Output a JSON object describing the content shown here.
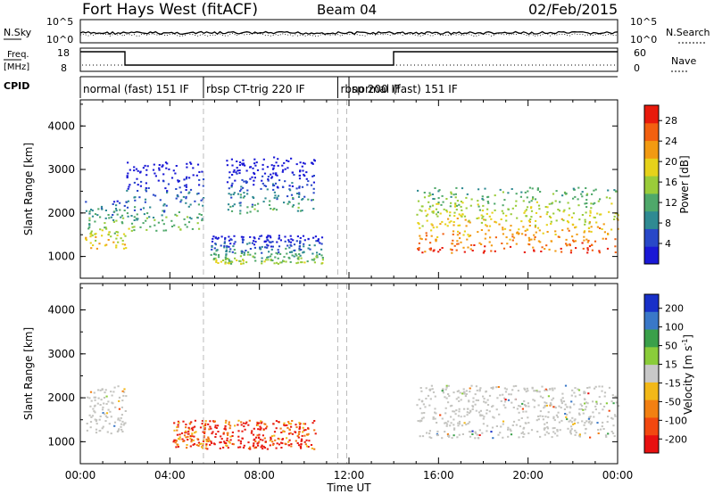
{
  "header": {
    "station": "Fort Hays West (fitACF)",
    "beam": "Beam 04",
    "date": "02/Feb/2015"
  },
  "noise_panel": {
    "left_label": "N.Sky",
    "left_ticks": [
      "10^5",
      "10^0"
    ],
    "right_ticks": [
      "10^5",
      "10^0"
    ],
    "right_label": "N.Search"
  },
  "freq_panel": {
    "left_label_1": "Freq.",
    "left_label_2": "[MHz]",
    "left_ticks": [
      "18",
      "8"
    ],
    "right_ticks": [
      "60",
      "0"
    ],
    "right_label": "Nave"
  },
  "cpid": {
    "label": "CPID",
    "modes": [
      {
        "name": "normal (fast) 151 IF",
        "start_h": 0.0,
        "end_h": 5.5
      },
      {
        "name": "rbsp CT-trig 220 IF",
        "start_h": 5.5,
        "end_h": 11.5
      },
      {
        "name": "rbsp 200 IF",
        "start_h": 11.5,
        "end_h": 12.0
      },
      {
        "name": "normal (fast) 151 IF",
        "start_h": 12.0,
        "end_h": 24.0
      }
    ]
  },
  "chart_data": [
    {
      "type": "heatmap",
      "name": "power",
      "ylabel": "Slant Range [km]",
      "ylim": [
        500,
        4600
      ],
      "yticks": [
        "1000",
        "2000",
        "3000",
        "4000"
      ],
      "xlim_hours": [
        0,
        24
      ],
      "colorbar_label": "Power [dB]",
      "colorbar_ticks": [
        "4",
        "8",
        "12",
        "16",
        "20",
        "24",
        "28"
      ],
      "colorbar_range": [
        0,
        31
      ],
      "colorbar_colors": [
        "#1a18d6",
        "#2848c8",
        "#2f8a92",
        "#4fa86a",
        "#9acc3a",
        "#e6d21a",
        "#f29a12",
        "#f26010",
        "#e81a0c"
      ],
      "features": [
        {
          "t0": 0.2,
          "t1": 2.0,
          "r0": 1200,
          "r1": 2300,
          "level": 16
        },
        {
          "t0": 2.0,
          "t1": 5.5,
          "r0": 1600,
          "r1": 3200,
          "level": 8
        },
        {
          "t0": 5.8,
          "t1": 10.8,
          "r0": 850,
          "r1": 1500,
          "level": 10
        },
        {
          "t0": 6.5,
          "t1": 10.5,
          "r0": 2000,
          "r1": 3300,
          "level": 6
        },
        {
          "t0": 15.0,
          "t1": 24.0,
          "r0": 1100,
          "r1": 2600,
          "level": 22
        }
      ]
    },
    {
      "type": "heatmap",
      "name": "velocity",
      "ylabel": "Slant Range [km]",
      "ylim": [
        500,
        4600
      ],
      "yticks": [
        "1000",
        "2000",
        "3000",
        "4000"
      ],
      "xlim_hours": [
        0,
        24
      ],
      "xticks": [
        "00:00",
        "04:00",
        "08:00",
        "12:00",
        "16:00",
        "20:00",
        "00:00"
      ],
      "xlabel": "Time UT",
      "colorbar_label": "Velocity [m s",
      "colorbar_label_sup": "-1",
      "colorbar_label_end": "]",
      "colorbar_ticks": [
        "200",
        "100",
        "50",
        "15",
        "-15",
        "-50",
        "-100",
        "-200"
      ],
      "colorbar_colors": [
        "#1830c8",
        "#3a78c8",
        "#3aa04a",
        "#8acc3a",
        "#c8c8c8",
        "#f2b818",
        "#f28012",
        "#f24810",
        "#e81010"
      ],
      "features": [
        {
          "t0": 0.2,
          "t1": 2.0,
          "r0": 1200,
          "r1": 2300,
          "velocity": 0
        },
        {
          "t0": 4.0,
          "t1": 10.5,
          "r0": 850,
          "r1": 1500,
          "velocity": -200
        },
        {
          "t0": 15.0,
          "t1": 24.0,
          "r0": 1100,
          "r1": 2300,
          "velocity": 0
        }
      ]
    }
  ]
}
